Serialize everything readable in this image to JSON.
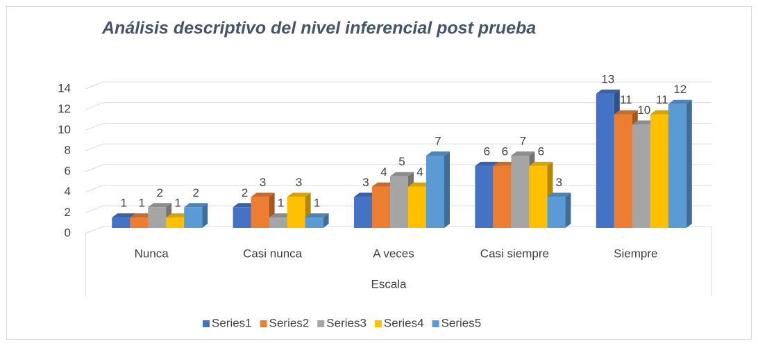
{
  "chart_data": {
    "type": "bar3d",
    "title": "Análisis descriptivo del nivel inferencial post prueba",
    "x_label": "Escala",
    "categories": [
      "Nunca",
      "Casi nunca",
      "A veces",
      "Casi siempre",
      "Siempre"
    ],
    "series": [
      {
        "name": "Series1",
        "color": "#4472c4",
        "values": [
          1,
          2,
          3,
          6,
          13
        ]
      },
      {
        "name": "Series2",
        "color": "#ed7d31",
        "values": [
          1,
          3,
          4,
          6,
          11
        ]
      },
      {
        "name": "Series3",
        "color": "#a5a5a5",
        "values": [
          2,
          1,
          5,
          7,
          10
        ]
      },
      {
        "name": "Series4",
        "color": "#ffc000",
        "values": [
          1,
          3,
          4,
          6,
          11
        ]
      },
      {
        "name": "Series5",
        "color": "#5b9bd5",
        "values": [
          2,
          1,
          7,
          3,
          12
        ]
      }
    ],
    "ylim": [
      0,
      14
    ],
    "yticks": [
      0,
      2,
      4,
      6,
      8,
      10,
      12,
      14
    ],
    "grid": true,
    "legend": "bottom"
  }
}
